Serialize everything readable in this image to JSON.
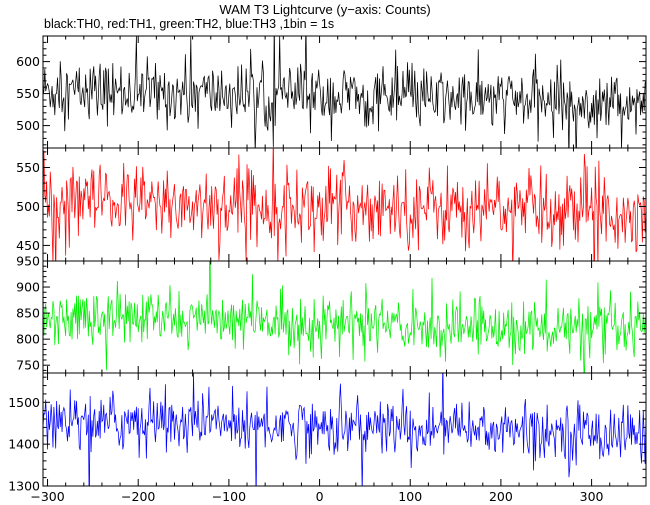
{
  "chart_data": {
    "type": "line",
    "title": "WAM T3 Lightcurve (y−axis: Counts)",
    "subtitle": "black:TH0, red:TH1, green:TH2, blue:TH3 ,1bin = 1s",
    "xlim": [
      -305,
      360
    ],
    "x_ticks": [
      -300,
      -200,
      -100,
      0,
      100,
      200,
      300
    ],
    "bin_seconds": 1,
    "panels": [
      {
        "name": "TH0",
        "color": "#000000",
        "ylim": [
          465,
          640
        ],
        "y_ticks": [
          500,
          550,
          600
        ],
        "mean_start": 555,
        "mean_end": 535,
        "noise_sd": 24,
        "spike_sd": 48
      },
      {
        "name": "TH1",
        "color": "#ff0000",
        "ylim": [
          430,
          575
        ],
        "y_ticks": [
          450,
          500,
          550
        ],
        "mean_start": 505,
        "mean_end": 496,
        "noise_sd": 25,
        "spike_sd": 50
      },
      {
        "name": "TH2",
        "color": "#00ee00",
        "ylim": [
          735,
          950
        ],
        "y_ticks": [
          750,
          800,
          850,
          900,
          950
        ],
        "mean_start": 845,
        "mean_end": 815,
        "noise_sd": 27,
        "spike_sd": 55
      },
      {
        "name": "TH3",
        "color": "#0000ff",
        "ylim": [
          1300,
          1570
        ],
        "y_ticks": [
          1300,
          1400,
          1500
        ],
        "mean_start": 1460,
        "mean_end": 1425,
        "noise_sd": 36,
        "spike_sd": 70
      }
    ]
  }
}
